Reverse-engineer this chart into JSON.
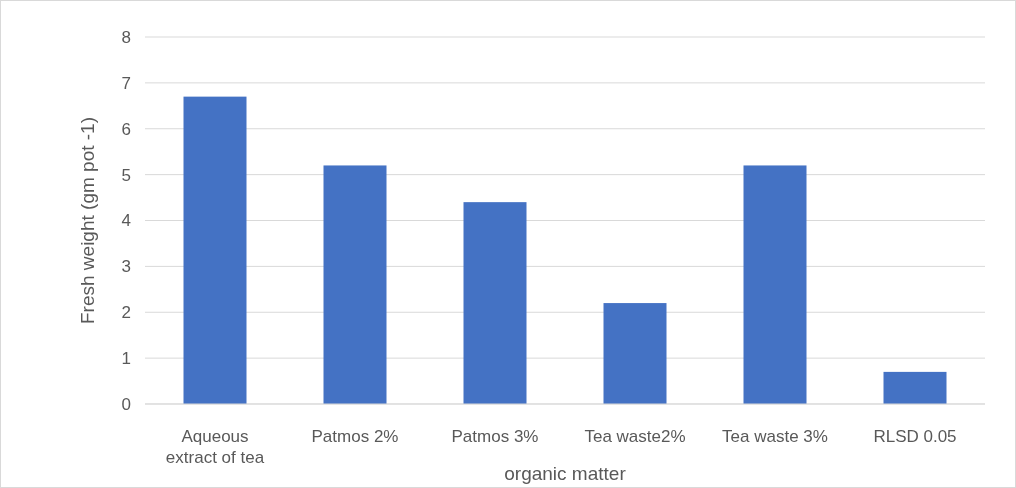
{
  "chart_data": {
    "type": "bar",
    "xlabel": "organic matter",
    "ylabel": "Fresh weight (gm pot -1)",
    "categories": [
      "Aqueous extract of tea",
      "Patmos 2%",
      "Patmos 3%",
      "Tea waste2%",
      "Tea waste 3%",
      "RLSD 0.05"
    ],
    "values": [
      6.7,
      5.2,
      4.4,
      2.2,
      5.2,
      0.7
    ],
    "color": "#4472c4",
    "ylim": [
      0,
      8
    ],
    "yticks": [
      0,
      1,
      2,
      3,
      4,
      5,
      6,
      7,
      8
    ],
    "grid": "y"
  }
}
